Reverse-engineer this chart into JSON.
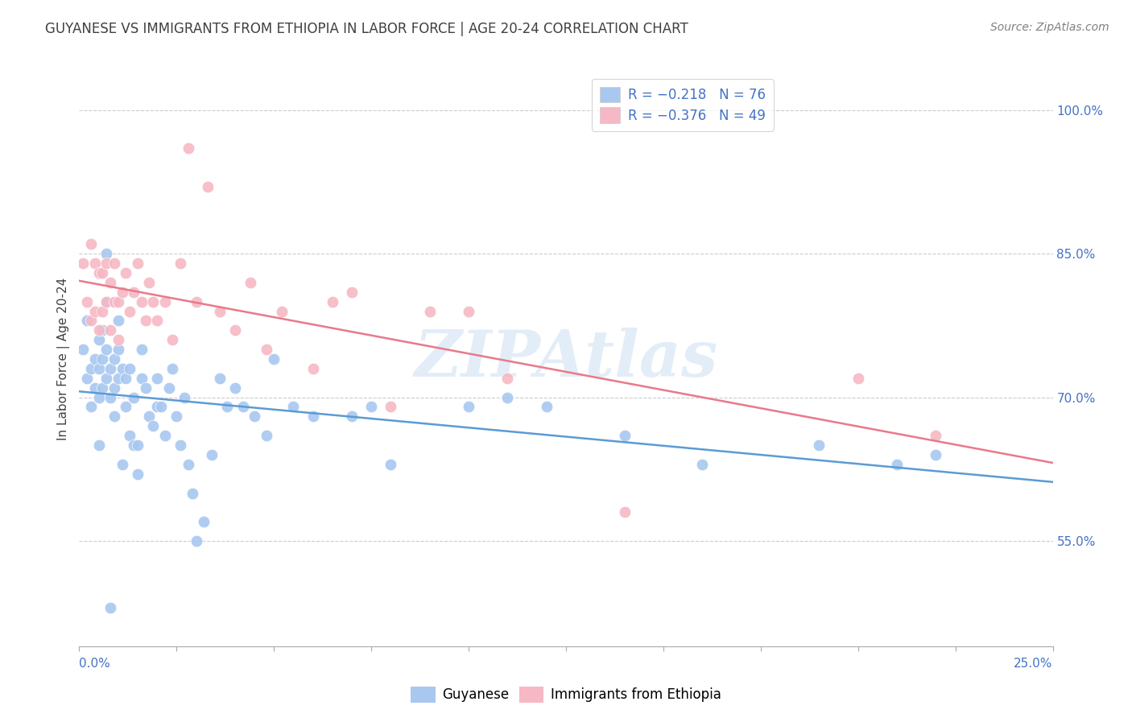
{
  "title": "GUYANESE VS IMMIGRANTS FROM ETHIOPIA IN LABOR FORCE | AGE 20-24 CORRELATION CHART",
  "source": "Source: ZipAtlas.com",
  "ylabel": "In Labor Force | Age 20-24",
  "xlim": [
    0.0,
    0.25
  ],
  "ylim": [
    0.44,
    1.04
  ],
  "yticks_right": [
    0.55,
    0.7,
    0.85,
    1.0
  ],
  "yticklabels_right": [
    "55.0%",
    "70.0%",
    "85.0%",
    "100.0%"
  ],
  "background_color": "#ffffff",
  "grid_color": "#cccccc",
  "watermark": "ZIPAtlas",
  "legend_label1": "R = −0.218   N = 76",
  "legend_label2": "R = −0.376   N = 49",
  "blue_color": "#a8c8f0",
  "pink_color": "#f5b8c4",
  "blue_line_color": "#5b9bd5",
  "pink_line_color": "#e87a8a",
  "title_color": "#404040",
  "axis_label_color": "#404040",
  "right_tick_color": "#4472c4",
  "source_color": "#808080",
  "guyanese_points_x": [
    0.001,
    0.002,
    0.002,
    0.003,
    0.003,
    0.004,
    0.004,
    0.005,
    0.005,
    0.005,
    0.006,
    0.006,
    0.006,
    0.007,
    0.007,
    0.007,
    0.007,
    0.008,
    0.008,
    0.009,
    0.009,
    0.009,
    0.01,
    0.01,
    0.01,
    0.011,
    0.011,
    0.012,
    0.012,
    0.013,
    0.013,
    0.014,
    0.014,
    0.015,
    0.015,
    0.016,
    0.016,
    0.017,
    0.018,
    0.019,
    0.02,
    0.02,
    0.021,
    0.022,
    0.023,
    0.024,
    0.025,
    0.026,
    0.027,
    0.028,
    0.029,
    0.03,
    0.032,
    0.034,
    0.036,
    0.038,
    0.04,
    0.042,
    0.045,
    0.048,
    0.05,
    0.055,
    0.06,
    0.07,
    0.075,
    0.08,
    0.1,
    0.11,
    0.12,
    0.14,
    0.16,
    0.19,
    0.21,
    0.22,
    0.005,
    0.008
  ],
  "guyanese_points_y": [
    0.75,
    0.72,
    0.78,
    0.73,
    0.69,
    0.74,
    0.71,
    0.76,
    0.73,
    0.7,
    0.77,
    0.74,
    0.71,
    0.75,
    0.72,
    0.8,
    0.85,
    0.73,
    0.7,
    0.74,
    0.71,
    0.68,
    0.75,
    0.72,
    0.78,
    0.73,
    0.63,
    0.72,
    0.69,
    0.73,
    0.66,
    0.7,
    0.65,
    0.65,
    0.62,
    0.75,
    0.72,
    0.71,
    0.68,
    0.67,
    0.72,
    0.69,
    0.69,
    0.66,
    0.71,
    0.73,
    0.68,
    0.65,
    0.7,
    0.63,
    0.6,
    0.55,
    0.57,
    0.64,
    0.72,
    0.69,
    0.71,
    0.69,
    0.68,
    0.66,
    0.74,
    0.69,
    0.68,
    0.68,
    0.69,
    0.63,
    0.69,
    0.7,
    0.69,
    0.66,
    0.63,
    0.65,
    0.63,
    0.64,
    0.65,
    0.48
  ],
  "ethiopia_points_x": [
    0.001,
    0.002,
    0.003,
    0.003,
    0.004,
    0.004,
    0.005,
    0.005,
    0.006,
    0.006,
    0.007,
    0.007,
    0.008,
    0.008,
    0.009,
    0.009,
    0.01,
    0.01,
    0.011,
    0.012,
    0.013,
    0.014,
    0.015,
    0.016,
    0.017,
    0.018,
    0.019,
    0.02,
    0.022,
    0.024,
    0.026,
    0.028,
    0.03,
    0.033,
    0.036,
    0.04,
    0.044,
    0.048,
    0.052,
    0.06,
    0.065,
    0.07,
    0.08,
    0.09,
    0.1,
    0.11,
    0.14,
    0.2,
    0.22
  ],
  "ethiopia_points_y": [
    0.84,
    0.8,
    0.86,
    0.78,
    0.84,
    0.79,
    0.83,
    0.77,
    0.83,
    0.79,
    0.84,
    0.8,
    0.82,
    0.77,
    0.84,
    0.8,
    0.8,
    0.76,
    0.81,
    0.83,
    0.79,
    0.81,
    0.84,
    0.8,
    0.78,
    0.82,
    0.8,
    0.78,
    0.8,
    0.76,
    0.84,
    0.96,
    0.8,
    0.92,
    0.79,
    0.77,
    0.82,
    0.75,
    0.79,
    0.73,
    0.8,
    0.81,
    0.69,
    0.79,
    0.79,
    0.72,
    0.58,
    0.72,
    0.66
  ]
}
